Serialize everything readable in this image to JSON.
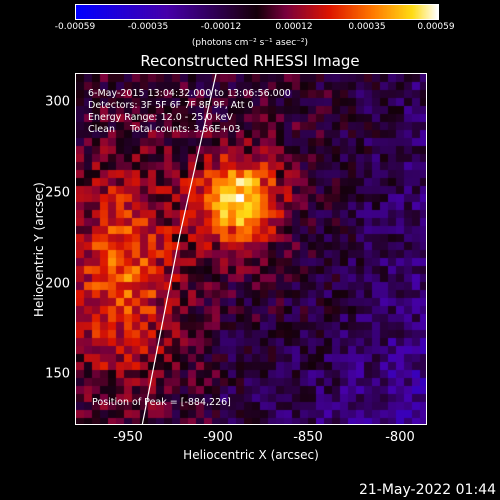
{
  "colorbar": {
    "ticks": [
      "-0.00059",
      "-0.00035",
      "-0.00012",
      "0.00012",
      "0.00035",
      "0.00059"
    ],
    "units": "(photons cm⁻² s⁻¹ asec⁻²)"
  },
  "title": "Reconstructed RHESSI Image",
  "info": {
    "time": "6-May-2015 13:04:32.000 to 13:06:56.000",
    "detectors": "Detectors: 3F 5F 6F 7F 8F 9F, Att 0",
    "energy": "Energy Range: 12.0 - 25.0 keV",
    "clean": "Clean     Total counts: 3.66E+03",
    "peak": "Position of Peak = [-884,226]"
  },
  "axes": {
    "xlabel": "Heliocentric X (arcsec)",
    "ylabel": "Heliocentric Y (arcsec)",
    "xticks": [
      "-950",
      "-900",
      "-850",
      "-800"
    ],
    "yticks": [
      "300",
      "250",
      "200",
      "150"
    ]
  },
  "footer": "21-May-2022 01:44",
  "chart_data": {
    "type": "heatmap",
    "title": "Reconstructed RHESSI Image",
    "xlabel": "Heliocentric X (arcsec)",
    "ylabel": "Heliocentric Y (arcsec)",
    "xlim": [
      -976,
      -792
    ],
    "ylim": [
      122,
      316
    ],
    "color_range": [
      -0.00059,
      0.00059
    ],
    "peak": [
      -884,
      226
    ],
    "colormap": "blue-black-red-yellow-white"
  }
}
